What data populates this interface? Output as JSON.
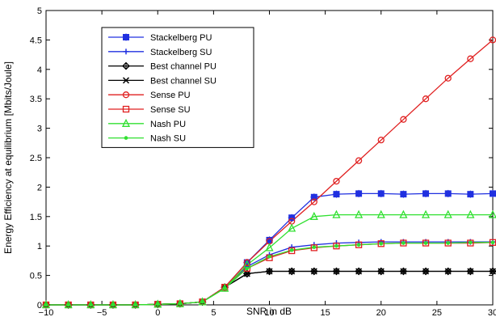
{
  "chart_data": {
    "type": "line",
    "xlabel": "SNR in dB",
    "ylabel": "Energy Efficiency at equilibrium [Mbits/Joule]",
    "xlim": [
      -10,
      30
    ],
    "ylim": [
      0,
      5
    ],
    "xticks": [
      -10,
      -5,
      0,
      5,
      10,
      15,
      20,
      25,
      30
    ],
    "yticks": [
      0,
      0.5,
      1,
      1.5,
      2,
      2.5,
      3,
      3.5,
      4,
      4.5,
      5
    ],
    "grid": false,
    "legend_position": "top-left",
    "x": [
      -10,
      -8,
      -6,
      -4,
      -2,
      0,
      2,
      4,
      6,
      8,
      10,
      12,
      14,
      16,
      18,
      20,
      22,
      24,
      26,
      28,
      30
    ],
    "series": [
      {
        "name": "Stackelberg PU",
        "color": "#2030e0",
        "marker": "square-cross",
        "values": [
          0,
          0,
          0,
          0,
          0,
          0.01,
          0.02,
          0.05,
          0.3,
          0.72,
          1.1,
          1.48,
          1.83,
          1.88,
          1.89,
          1.89,
          1.88,
          1.89,
          1.89,
          1.88,
          1.89
        ]
      },
      {
        "name": "Stackelberg SU",
        "color": "#2030e0",
        "marker": "plus",
        "values": [
          0,
          0,
          0,
          0,
          0,
          0.01,
          0.02,
          0.05,
          0.3,
          0.65,
          0.85,
          0.98,
          1.02,
          1.05,
          1.06,
          1.07,
          1.07,
          1.07,
          1.07,
          1.07,
          1.07
        ]
      },
      {
        "name": "Best channel PU",
        "color": "#000000",
        "marker": "diamond-open",
        "values": [
          0,
          0,
          0,
          0,
          0,
          0.01,
          0.02,
          0.05,
          0.3,
          0.53,
          0.57,
          0.57,
          0.57,
          0.57,
          0.57,
          0.57,
          0.57,
          0.57,
          0.57,
          0.57,
          0.57
        ]
      },
      {
        "name": "Best channel SU",
        "color": "#000000",
        "marker": "x",
        "values": [
          0,
          0,
          0,
          0,
          0,
          0.01,
          0.02,
          0.05,
          0.3,
          0.53,
          0.57,
          0.57,
          0.57,
          0.57,
          0.57,
          0.57,
          0.57,
          0.57,
          0.57,
          0.57,
          0.57
        ]
      },
      {
        "name": "Sense PU",
        "color": "#e02020",
        "marker": "circle-open",
        "values": [
          0,
          0,
          0,
          0,
          0,
          0.01,
          0.02,
          0.05,
          0.3,
          0.72,
          1.08,
          1.42,
          1.75,
          2.1,
          2.45,
          2.8,
          3.15,
          3.5,
          3.85,
          4.18,
          4.5
        ]
      },
      {
        "name": "Sense SU",
        "color": "#e02020",
        "marker": "square-open",
        "values": [
          0,
          0,
          0,
          0,
          0,
          0.01,
          0.02,
          0.05,
          0.3,
          0.62,
          0.8,
          0.92,
          0.97,
          1.0,
          1.02,
          1.04,
          1.05,
          1.05,
          1.05,
          1.05,
          1.06
        ]
      },
      {
        "name": "Nash PU",
        "color": "#30e030",
        "marker": "triangle-open",
        "values": [
          0,
          0,
          0,
          0,
          0,
          0.01,
          0.02,
          0.05,
          0.28,
          0.68,
          0.97,
          1.3,
          1.5,
          1.53,
          1.53,
          1.53,
          1.53,
          1.53,
          1.53,
          1.53,
          1.53
        ]
      },
      {
        "name": "Nash SU",
        "color": "#30e030",
        "marker": "dot",
        "values": [
          0,
          0,
          0,
          0,
          0,
          0.01,
          0.02,
          0.05,
          0.28,
          0.62,
          0.82,
          0.93,
          0.98,
          1.0,
          1.02,
          1.04,
          1.05,
          1.05,
          1.05,
          1.06,
          1.06
        ]
      }
    ]
  }
}
